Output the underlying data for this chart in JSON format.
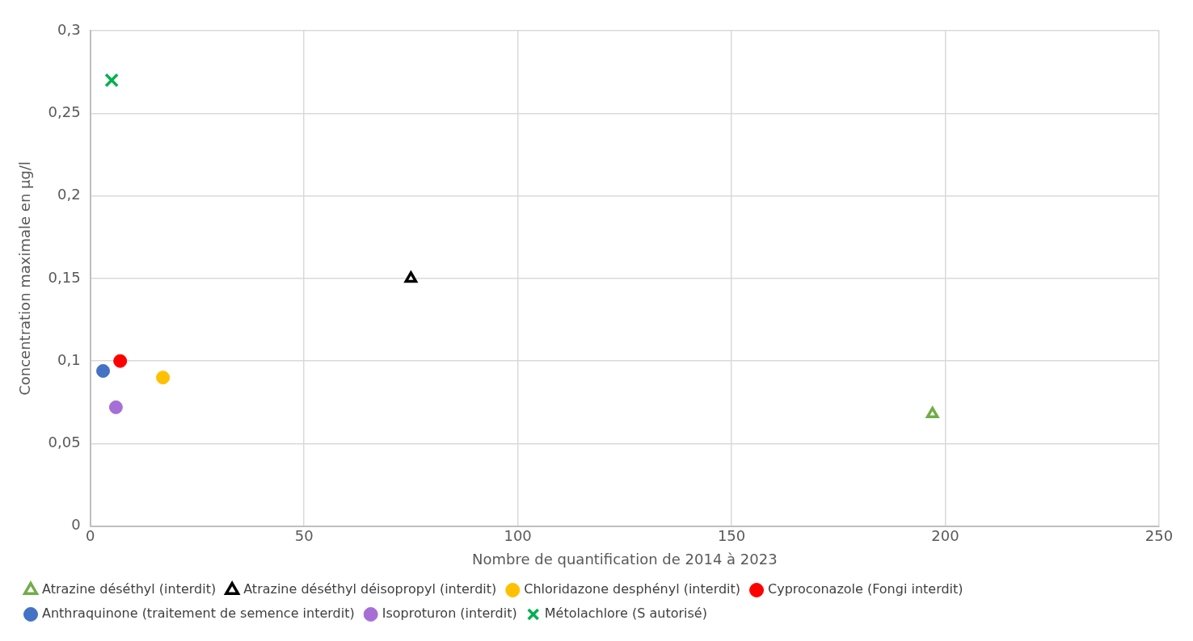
{
  "chart_data": {
    "type": "scatter",
    "xlabel": "Nombre de quantification de 2014 à 2023",
    "ylabel": "Concentration maximale en µg/l",
    "xlim": [
      0,
      250
    ],
    "xticks": [
      0,
      50,
      100,
      150,
      200,
      250
    ],
    "ylim": [
      0,
      0.3
    ],
    "yticks": [
      {
        "value": 0,
        "label": "0"
      },
      {
        "value": 0.05,
        "label": "0,05"
      },
      {
        "value": 0.1,
        "label": "0,1"
      },
      {
        "value": 0.15,
        "label": "0,15"
      },
      {
        "value": 0.2,
        "label": "0,2"
      },
      {
        "value": 0.25,
        "label": "0,25"
      },
      {
        "value": 0.3,
        "label": "0,3"
      }
    ],
    "grid": true,
    "legend": "bottom",
    "series": [
      {
        "name": "Atrazine déséthyl (interdit)",
        "color": "#70ad47",
        "marker": "triangle",
        "x": [
          197
        ],
        "values": [
          0.068
        ]
      },
      {
        "name": "Atrazine déséthyl déisopropyl (interdit)",
        "color": "#000000",
        "marker": "triangle",
        "x": [
          75
        ],
        "values": [
          0.15
        ]
      },
      {
        "name": "Chloridazone desphényl (interdit)",
        "color": "#ffc000",
        "marker": "circle",
        "x": [
          17
        ],
        "values": [
          0.09
        ]
      },
      {
        "name": "Cyproconazole (Fongi interdit)",
        "color": "#ff0000",
        "marker": "circle",
        "x": [
          7
        ],
        "values": [
          0.1
        ]
      },
      {
        "name": "Anthraquinone (traitement de semence interdit)",
        "color": "#4472c4",
        "marker": "circle",
        "x": [
          3
        ],
        "values": [
          0.094
        ]
      },
      {
        "name": "Isoproturon (interdit)",
        "color": "#a66fd6",
        "marker": "circle",
        "x": [
          6
        ],
        "values": [
          0.072
        ]
      },
      {
        "name": "Métolachlore (S autorisé)",
        "color": "#00b050",
        "marker": "cross",
        "x": [
          5
        ],
        "values": [
          0.27
        ]
      }
    ]
  }
}
